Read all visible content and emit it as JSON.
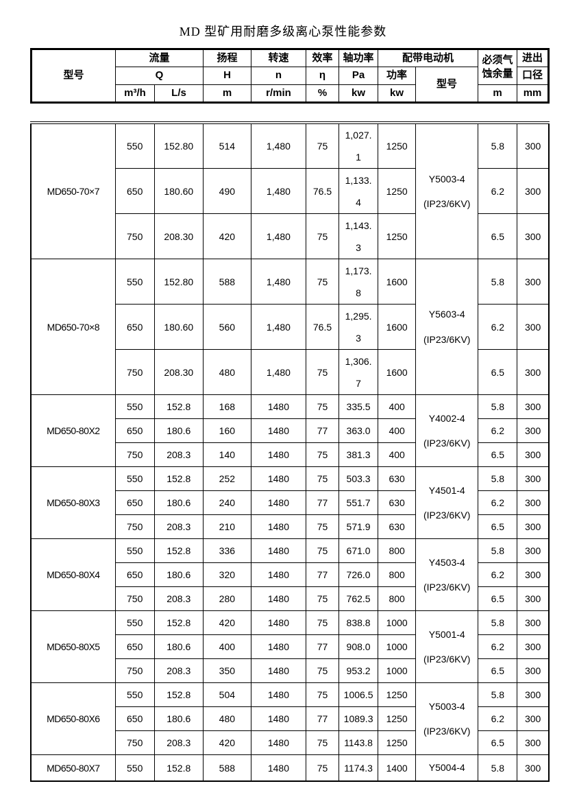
{
  "title": "MD 型矿用耐磨多级离心泵性能参数",
  "header": {
    "model": "型号",
    "flow": "流量",
    "flow_q": "Q",
    "flow_m3h": "m³/h",
    "flow_ls": "L/s",
    "head": "扬程",
    "head_h": "H",
    "head_m": "m",
    "speed": "转速",
    "speed_n": "n",
    "speed_unit": "r/min",
    "efficiency": "效率",
    "efficiency_symbol": "η",
    "efficiency_unit": "%",
    "shaft_power": "轴功率",
    "shaft_power_symbol": "Pa",
    "shaft_power_unit": "kw",
    "motor": "配带电动机",
    "motor_power": "功率",
    "motor_power_unit": "kw",
    "motor_model": "型号",
    "npsh_line1": "必须气",
    "npsh_line2": "蚀余量",
    "npsh_unit": "m",
    "port_line1": "进出",
    "port_line2": "口径",
    "port_unit": "mm"
  },
  "groups": [
    {
      "model": "MD650-70×7",
      "motor_model": "Y5003-4",
      "motor_spec": "(IP23/6KV)",
      "rows": [
        {
          "q_m3h": "550",
          "q_ls": "152.80",
          "h": "514",
          "n": "1,480",
          "eta": "75",
          "pa": "1,027.1",
          "kw": "1250",
          "npsh": "5.8",
          "dia": "300"
        },
        {
          "q_m3h": "650",
          "q_ls": "180.60",
          "h": "490",
          "n": "1,480",
          "eta": "76.5",
          "pa": "1,133.4",
          "kw": "1250",
          "npsh": "6.2",
          "dia": "300"
        },
        {
          "q_m3h": "750",
          "q_ls": "208.30",
          "h": "420",
          "n": "1,480",
          "eta": "75",
          "pa": "1,143.3",
          "kw": "1250",
          "npsh": "6.5",
          "dia": "300"
        }
      ]
    },
    {
      "model": "MD650-70×8",
      "motor_model": "Y5603-4",
      "motor_spec": "(IP23/6KV)",
      "rows": [
        {
          "q_m3h": "550",
          "q_ls": "152.80",
          "h": "588",
          "n": "1,480",
          "eta": "75",
          "pa": "1,173.8",
          "kw": "1600",
          "npsh": "5.8",
          "dia": "300"
        },
        {
          "q_m3h": "650",
          "q_ls": "180.60",
          "h": "560",
          "n": "1,480",
          "eta": "76.5",
          "pa": "1,295.3",
          "kw": "1600",
          "npsh": "6.2",
          "dia": "300"
        },
        {
          "q_m3h": "750",
          "q_ls": "208.30",
          "h": "480",
          "n": "1,480",
          "eta": "75",
          "pa": "1,306.7",
          "kw": "1600",
          "npsh": "6.5",
          "dia": "300"
        }
      ]
    },
    {
      "model": "MD650-80X2",
      "motor_model": "Y4002-4",
      "motor_spec": "(IP23/6KV)",
      "rows": [
        {
          "q_m3h": "550",
          "q_ls": "152.8",
          "h": "168",
          "n": "1480",
          "eta": "75",
          "pa": "335.5",
          "kw": "400",
          "npsh": "5.8",
          "dia": "300"
        },
        {
          "q_m3h": "650",
          "q_ls": "180.6",
          "h": "160",
          "n": "1480",
          "eta": "77",
          "pa": "363.0",
          "kw": "400",
          "npsh": "6.2",
          "dia": "300"
        },
        {
          "q_m3h": "750",
          "q_ls": "208.3",
          "h": "140",
          "n": "1480",
          "eta": "75",
          "pa": "381.3",
          "kw": "400",
          "npsh": "6.5",
          "dia": "300"
        }
      ]
    },
    {
      "model": "MD650-80X3",
      "motor_model": "Y4501-4",
      "motor_spec": "(IP23/6KV)",
      "rows": [
        {
          "q_m3h": "550",
          "q_ls": "152.8",
          "h": "252",
          "n": "1480",
          "eta": "75",
          "pa": "503.3",
          "kw": "630",
          "npsh": "5.8",
          "dia": "300"
        },
        {
          "q_m3h": "650",
          "q_ls": "180.6",
          "h": "240",
          "n": "1480",
          "eta": "77",
          "pa": "551.7",
          "kw": "630",
          "npsh": "6.2",
          "dia": "300"
        },
        {
          "q_m3h": "750",
          "q_ls": "208.3",
          "h": "210",
          "n": "1480",
          "eta": "75",
          "pa": "571.9",
          "kw": "630",
          "npsh": "6.5",
          "dia": "300"
        }
      ]
    },
    {
      "model": "MD650-80X4",
      "motor_model": "Y4503-4",
      "motor_spec": "(IP23/6KV)",
      "rows": [
        {
          "q_m3h": "550",
          "q_ls": "152.8",
          "h": "336",
          "n": "1480",
          "eta": "75",
          "pa": "671.0",
          "kw": "800",
          "npsh": "5.8",
          "dia": "300"
        },
        {
          "q_m3h": "650",
          "q_ls": "180.6",
          "h": "320",
          "n": "1480",
          "eta": "77",
          "pa": "726.0",
          "kw": "800",
          "npsh": "6.2",
          "dia": "300"
        },
        {
          "q_m3h": "750",
          "q_ls": "208.3",
          "h": "280",
          "n": "1480",
          "eta": "75",
          "pa": "762.5",
          "kw": "800",
          "npsh": "6.5",
          "dia": "300"
        }
      ]
    },
    {
      "model": "MD650-80X5",
      "motor_model": "Y5001-4",
      "motor_spec": "(IP23/6KV)",
      "rows": [
        {
          "q_m3h": "550",
          "q_ls": "152.8",
          "h": "420",
          "n": "1480",
          "eta": "75",
          "pa": "838.8",
          "kw": "1000",
          "npsh": "5.8",
          "dia": "300"
        },
        {
          "q_m3h": "650",
          "q_ls": "180.6",
          "h": "400",
          "n": "1480",
          "eta": "77",
          "pa": "908.0",
          "kw": "1000",
          "npsh": "6.2",
          "dia": "300"
        },
        {
          "q_m3h": "750",
          "q_ls": "208.3",
          "h": "350",
          "n": "1480",
          "eta": "75",
          "pa": "953.2",
          "kw": "1000",
          "npsh": "6.5",
          "dia": "300"
        }
      ]
    },
    {
      "model": "MD650-80X6",
      "motor_model": "Y5003-4",
      "motor_spec": "(IP23/6KV)",
      "rows": [
        {
          "q_m3h": "550",
          "q_ls": "152.8",
          "h": "504",
          "n": "1480",
          "eta": "75",
          "pa": "1006.5",
          "kw": "1250",
          "npsh": "5.8",
          "dia": "300"
        },
        {
          "q_m3h": "650",
          "q_ls": "180.6",
          "h": "480",
          "n": "1480",
          "eta": "77",
          "pa": "1089.3",
          "kw": "1250",
          "npsh": "6.2",
          "dia": "300"
        },
        {
          "q_m3h": "750",
          "q_ls": "208.3",
          "h": "420",
          "n": "1480",
          "eta": "75",
          "pa": "1143.8",
          "kw": "1250",
          "npsh": "6.5",
          "dia": "300"
        }
      ]
    },
    {
      "model": "MD650-80X7",
      "motor_model": "Y5004-4",
      "motor_spec": "",
      "rows": [
        {
          "q_m3h": "550",
          "q_ls": "152.8",
          "h": "588",
          "n": "1480",
          "eta": "75",
          "pa": "1174.3",
          "kw": "1400",
          "npsh": "5.8",
          "dia": "300"
        }
      ]
    }
  ]
}
